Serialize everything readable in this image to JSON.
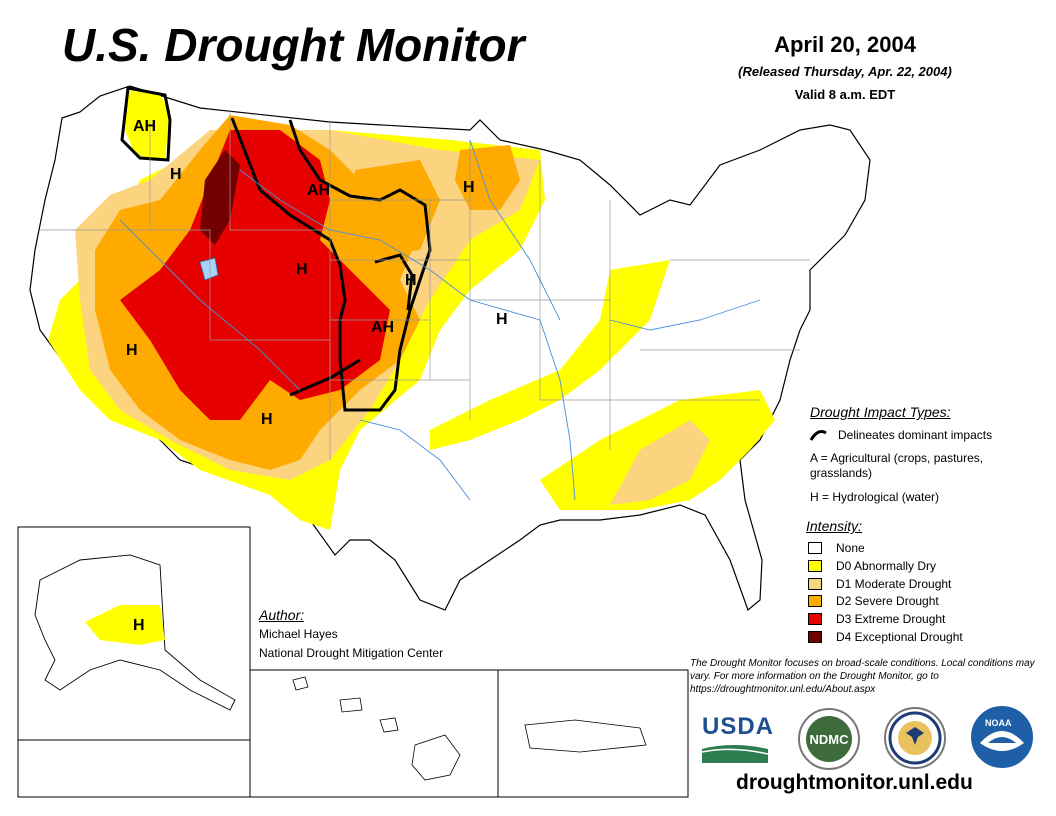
{
  "header": {
    "title": "U.S. Drought Monitor",
    "date": "April 20, 2004",
    "released": "(Released Thursday, Apr. 22, 2004)",
    "valid": "Valid 8 a.m. EDT"
  },
  "impact_types": {
    "header": "Drought Impact Types:",
    "line_label": "Delineates dominant impacts",
    "a_label": "A = Agricultural (crops, pastures, grasslands)",
    "h_label": "H = Hydrological (water)"
  },
  "intensity": {
    "header": "Intensity:",
    "levels": [
      {
        "label": "None",
        "color": "#ffffff"
      },
      {
        "label": "D0 Abnormally Dry",
        "color": "#ffff00"
      },
      {
        "label": "D1 Moderate Drought",
        "color": "#fcd37f"
      },
      {
        "label": "D2 Severe Drought",
        "color": "#ffaa00"
      },
      {
        "label": "D3 Extreme Drought",
        "color": "#e60000"
      },
      {
        "label": "D4 Exceptional Drought",
        "color": "#730000"
      }
    ]
  },
  "map_labels": [
    "AH",
    "H",
    "AH",
    "H",
    "H",
    "H",
    "AH",
    "H",
    "H",
    "H",
    "H"
  ],
  "author": {
    "header": "Author:",
    "name": "Michael Hayes",
    "org": "National Drought Mitigation Center"
  },
  "disclaimer": "The Drought Monitor focuses on broad-scale conditions. Local conditions may vary. For more information on the Drought Monitor, go to https://droughtmonitor.unl.edu/About.aspx",
  "logos": {
    "usda": "USDA",
    "ndmc": "NDMC",
    "noaa": "NOAA"
  },
  "footer_url": "droughtmonitor.unl.edu"
}
